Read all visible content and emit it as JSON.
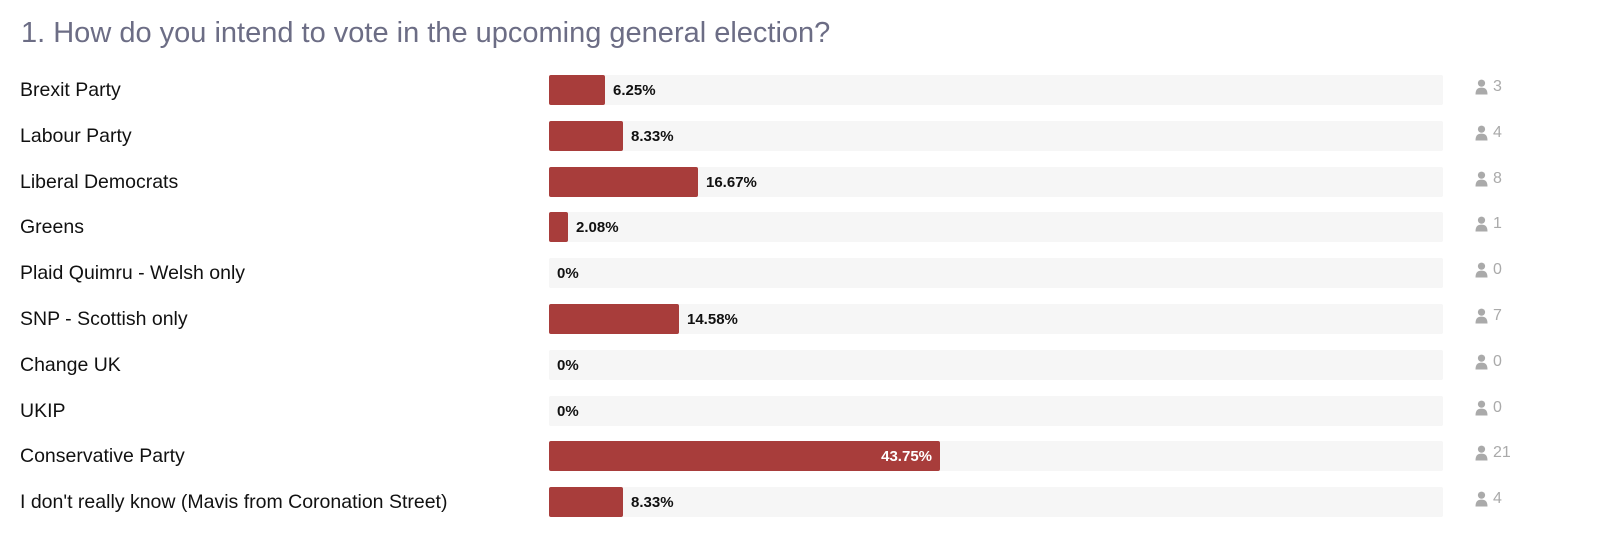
{
  "colors": {
    "bar": "#a83d3b",
    "track": "#f6f6f6",
    "title": "#6c6d85",
    "count": "#aaaaaa"
  },
  "icons": {
    "count_icon": "user-icon"
  },
  "chart_data": {
    "type": "bar",
    "orientation": "horizontal",
    "title": "1. How do you intend to vote in the upcoming general election?",
    "xlim": [
      0,
      100
    ],
    "categories": [
      "Brexit Party",
      "Labour Party",
      "Liberal Democrats",
      "Greens",
      "Plaid Quimru - Welsh only",
      "SNP - Scottish only",
      "Change UK",
      "UKIP",
      "Conservative Party",
      "I don't really know (Mavis from Coronation Street)"
    ],
    "values": [
      6.25,
      8.33,
      16.67,
      2.08,
      0,
      14.58,
      0,
      0,
      43.75,
      8.33
    ],
    "value_labels": [
      "6.25%",
      "8.33%",
      "16.67%",
      "2.08%",
      "0%",
      "14.58%",
      "0%",
      "0%",
      "43.75%",
      "8.33%"
    ],
    "counts": [
      3,
      4,
      8,
      1,
      0,
      7,
      0,
      0,
      21,
      4
    ]
  }
}
